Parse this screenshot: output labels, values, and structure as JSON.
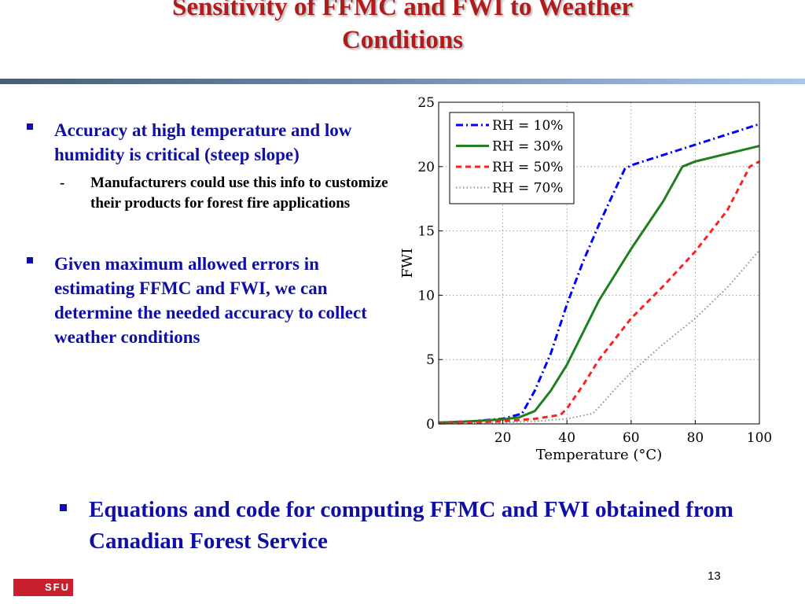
{
  "slide": {
    "title_line1": "Sensitivity of FFMC and FWI to Weather",
    "title_line2": "Conditions",
    "bullets": [
      {
        "text": "Accuracy at high temperature and low humidity is critical (steep slope)",
        "sub": "Manufacturers could use this info to customize their products for forest fire applications",
        "sub_marker": "-"
      },
      {
        "text": "Given maximum allowed errors in estimating FFMC and FWI, we can determine the needed accuracy to collect weather conditions"
      }
    ],
    "bottom_bullet": "Equations and code for computing FFMC and FWI obtained from Canadian Forest Service",
    "page_number": "13",
    "logo_text": "SFU"
  },
  "colors": {
    "title": "#b01c1c",
    "bullet_text": "#0f0fa6",
    "logo_bg": "#c9202f"
  },
  "chart_data": {
    "type": "line",
    "xlabel": "Temperature (°C)",
    "ylabel": "FWI",
    "xlim": [
      0,
      100
    ],
    "ylim": [
      0,
      25
    ],
    "xticks": [
      20,
      40,
      60,
      80,
      100
    ],
    "yticks": [
      0,
      5,
      10,
      15,
      20,
      25
    ],
    "grid": true,
    "legend_position": "top-left",
    "series": [
      {
        "name": "RH = 10%",
        "color": "#0000ff",
        "dash": "dash-dot",
        "x": [
          0,
          10,
          20,
          26,
          30,
          35,
          40,
          45,
          50,
          55,
          58,
          60,
          70,
          80,
          90,
          100
        ],
        "y": [
          0.1,
          0.2,
          0.4,
          0.8,
          2.6,
          5.5,
          9.3,
          12.6,
          15.5,
          18.2,
          19.8,
          20.1,
          20.9,
          21.7,
          22.5,
          23.3
        ]
      },
      {
        "name": "RH = 30%",
        "color": "#1f7f1f",
        "dash": "solid",
        "x": [
          0,
          10,
          20,
          25,
          30,
          35,
          40,
          50,
          60,
          70,
          76,
          80,
          90,
          100
        ],
        "y": [
          0.1,
          0.2,
          0.35,
          0.5,
          1.0,
          2.6,
          4.6,
          9.6,
          13.6,
          17.3,
          20.0,
          20.4,
          21.0,
          21.6
        ]
      },
      {
        "name": "RH = 50%",
        "color": "#ff2020",
        "dash": "dashed",
        "x": [
          0,
          10,
          20,
          30,
          38,
          40,
          45,
          50,
          60,
          70,
          80,
          90,
          97,
          100
        ],
        "y": [
          0.05,
          0.1,
          0.2,
          0.4,
          0.7,
          1.2,
          3.0,
          5.0,
          8.2,
          10.7,
          13.4,
          16.6,
          20.0,
          20.4
        ]
      },
      {
        "name": "RH = 70%",
        "color": "#909090",
        "dash": "dotted",
        "x": [
          0,
          10,
          20,
          30,
          40,
          48,
          50,
          55,
          60,
          70,
          80,
          90,
          100
        ],
        "y": [
          0.02,
          0.05,
          0.1,
          0.2,
          0.4,
          0.8,
          1.3,
          2.7,
          4.0,
          6.2,
          8.2,
          10.6,
          13.5
        ]
      }
    ]
  }
}
